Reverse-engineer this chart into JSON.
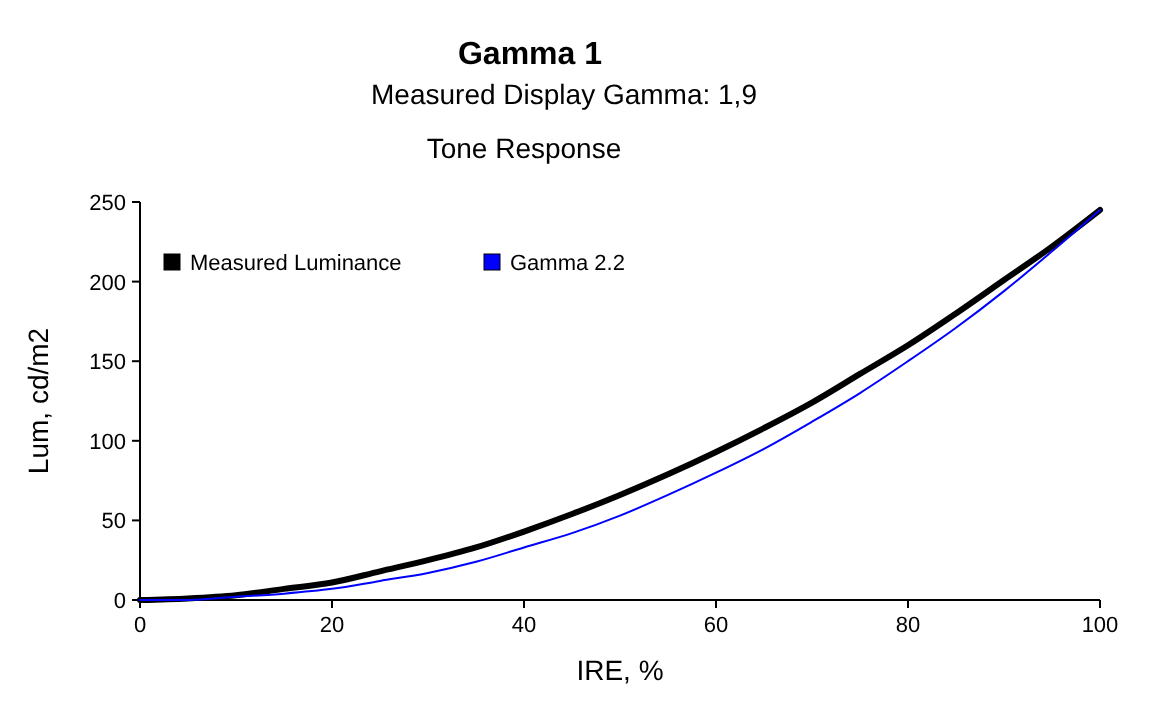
{
  "chart_data": {
    "type": "line",
    "title": "Gamma 1",
    "subtitle": "Measured Display Gamma: 1,9",
    "annotations": [
      "Tone Response"
    ],
    "xlabel": "IRE, %",
    "ylabel": "Lum, cd/m2",
    "x": [
      0,
      5,
      10,
      15,
      20,
      25,
      30,
      35,
      40,
      45,
      50,
      55,
      60,
      65,
      70,
      75,
      80,
      85,
      90,
      95,
      100
    ],
    "series": [
      {
        "name": "Measured Luminance",
        "color": "#000000",
        "values": [
          0,
          1,
          3,
          7,
          11,
          18,
          25,
          33,
          43,
          54,
          66,
          79,
          93,
          108,
          124,
          142,
          160,
          180,
          201,
          222,
          245
        ]
      },
      {
        "name": "Gamma 2.2",
        "color": "#0000ff",
        "values": [
          0,
          0,
          2,
          4,
          7,
          12,
          17,
          24,
          33,
          42,
          53,
          66,
          80,
          95,
          112,
          130,
          150,
          171,
          194,
          219,
          245
        ]
      }
    ],
    "xlim": [
      0,
      100
    ],
    "ylim": [
      0,
      250
    ],
    "xticks": [
      0,
      20,
      40,
      60,
      80,
      100
    ],
    "yticks": [
      0,
      50,
      100,
      150,
      200,
      250
    ],
    "grid": false,
    "legend": "top left",
    "marker": "none",
    "line_style": "solid"
  }
}
